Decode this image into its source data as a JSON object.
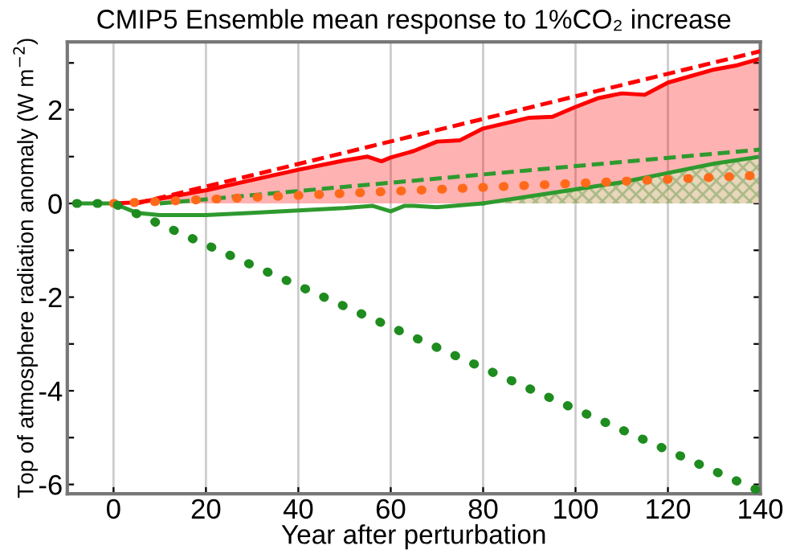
{
  "chart_data": {
    "type": "line",
    "title": "CMIP5 Ensemble mean response to 1%CO₂ increase",
    "xlabel": "Year after perturbation",
    "ylabel": "Top of atmosphere radiation anomaly (W m$^{−2}$)",
    "xlim": [
      -10,
      140
    ],
    "ylim": [
      -6.2,
      3.45
    ],
    "xticks": [
      0,
      20,
      40,
      60,
      80,
      100,
      120,
      140
    ],
    "yticks": [
      -6,
      {
        "value": -5,
        "label": null
      },
      -4,
      {
        "value": -3,
        "label": null
      },
      -2,
      {
        "value": -1,
        "label": null
      },
      0,
      {
        "value": 1,
        "label": null
      },
      2,
      {
        "value": 3,
        "label": null
      }
    ],
    "grid": "x",
    "legend": false,
    "series": [
      {
        "type": "area",
        "color": "#ff0000",
        "line_style": "solid",
        "x": [
          0,
          5,
          10,
          20,
          30,
          40,
          50,
          55,
          58,
          60,
          65,
          70,
          75,
          80,
          90,
          95,
          100,
          105,
          110,
          115,
          120,
          130,
          135,
          140
        ],
        "values": [
          0,
          0.02,
          0.1,
          0.28,
          0.5,
          0.72,
          0.92,
          1.0,
          0.9,
          0.98,
          1.12,
          1.32,
          1.35,
          1.6,
          1.83,
          1.85,
          2.06,
          2.25,
          2.35,
          2.32,
          2.58,
          2.86,
          2.95,
          3.09
        ]
      },
      {
        "color": "#2e9a2e",
        "line_style": "solid",
        "x": [
          -8,
          0,
          5,
          10,
          20,
          30,
          40,
          50,
          56,
          60,
          63,
          65,
          70,
          80
        ],
        "values": [
          0,
          0,
          -0.2,
          -0.25,
          -0.25,
          -0.2,
          -0.15,
          -0.1,
          -0.05,
          -0.17,
          -0.05,
          -0.05,
          -0.08,
          0.0
        ]
      },
      {
        "type": "area",
        "color": "#2e9a2e",
        "line_style": "solid",
        "x": [
          80,
          90,
          100,
          110,
          120,
          130,
          140
        ],
        "values": [
          0.0,
          0.15,
          0.3,
          0.45,
          0.65,
          0.85,
          1.0
        ]
      },
      {
        "color": "#ff0000",
        "line_style": "dashed",
        "x": [
          5,
          140
        ],
        "values": [
          0,
          3.25
        ]
      },
      {
        "color": "#2e9a2e",
        "line_style": "dashed",
        "x": [
          10,
          140
        ],
        "values": [
          0,
          1.15
        ]
      },
      {
        "color": "#ff6a1a",
        "line_style": "dotted",
        "x": [
          0,
          140
        ],
        "values": [
          0,
          0.6
        ]
      },
      {
        "color": "#1e8c1e",
        "line_style": "dotted",
        "x": [
          -8,
          0,
          140
        ],
        "values": [
          0,
          0,
          -6.15
        ]
      }
    ]
  }
}
